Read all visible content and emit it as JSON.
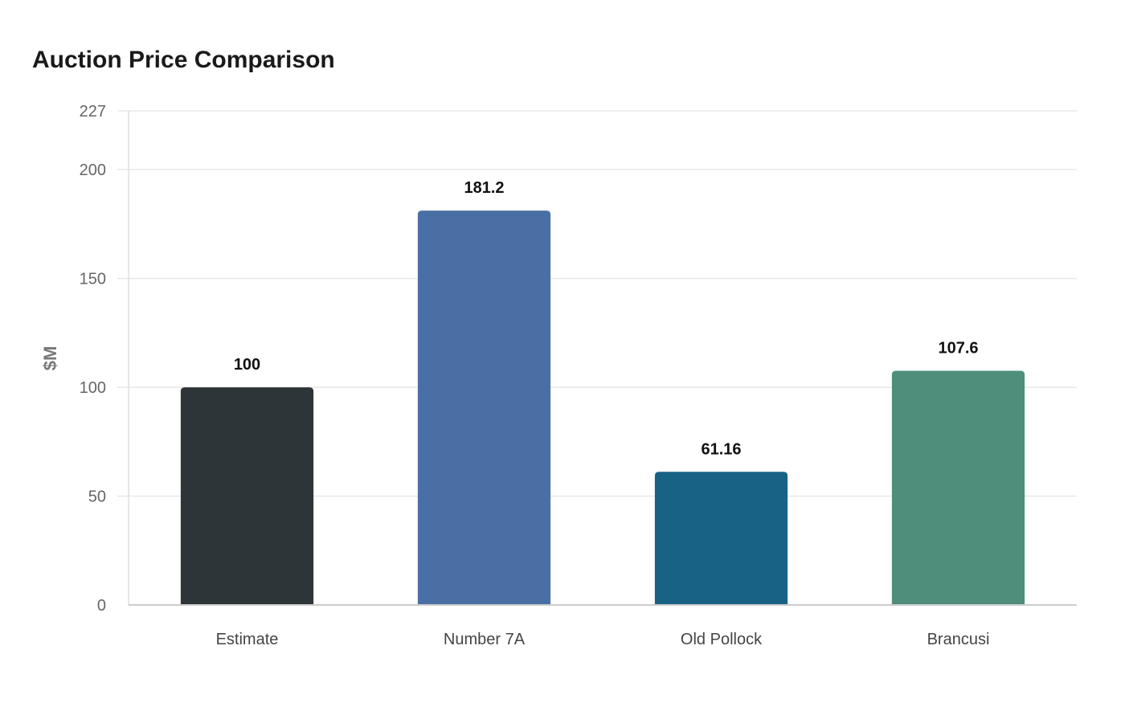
{
  "chart_data": {
    "type": "bar",
    "title": "Auction Price Comparison",
    "xlabel": "",
    "ylabel": "$M",
    "categories": [
      "Estimate",
      "Number 7A",
      "Old Pollock",
      "Brancusi"
    ],
    "values": [
      100,
      181.2,
      61.16,
      107.6
    ],
    "value_labels": [
      "100",
      "181.2",
      "61.16",
      "107.6"
    ],
    "colors": [
      "#2e3538",
      "#4a6fa5",
      "#186286",
      "#4e8e7b"
    ],
    "ylim": [
      0,
      227
    ],
    "yticks": [
      0,
      50,
      100,
      150,
      200,
      227
    ],
    "grid": true,
    "legend": "none"
  }
}
